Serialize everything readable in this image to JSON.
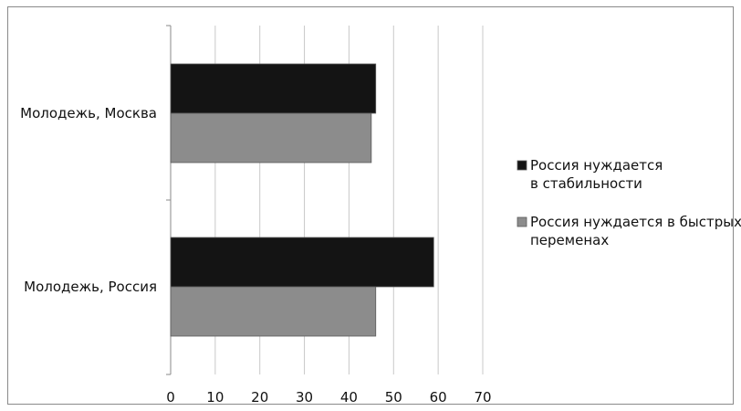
{
  "chart_data": {
    "type": "bar",
    "orientation": "horizontal",
    "title": "",
    "xlabel": "",
    "ylabel": "",
    "categories": [
      "Молодежь, Москва",
      "Молодежь, Россия"
    ],
    "series": [
      {
        "name": "Россия нуждается в стабильности",
        "legend_lines": [
          "Россия нуждается",
          "в стабильности"
        ],
        "color": "#141414",
        "values": [
          46,
          59
        ]
      },
      {
        "name": "Россия нуждается в быстрых переменах",
        "legend_lines": [
          "Россия нуждается в быстрых",
          "переменах"
        ],
        "color": "#8c8c8c",
        "values": [
          45,
          46
        ]
      }
    ],
    "xlim": [
      0,
      70
    ],
    "xticks": [
      0,
      10,
      20,
      30,
      40,
      50,
      60,
      70
    ],
    "grid": true,
    "legend_position": "right"
  }
}
